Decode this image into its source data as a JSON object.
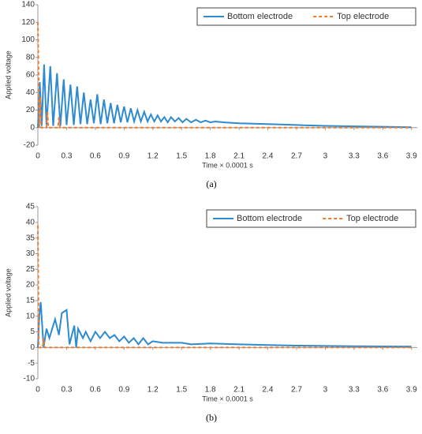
{
  "chart_data": [
    {
      "type": "line",
      "ylabel": "Applied voltage",
      "xlabel": "Time × 0.0001 s",
      "caption": "(a)",
      "xlim": [
        0,
        3.96
      ],
      "xticks": [
        0,
        0.3,
        0.6,
        0.9,
        1.2,
        1.5,
        1.8,
        2.1,
        2.4,
        2.7,
        3,
        3.3,
        3.6,
        3.9
      ],
      "ylim": [
        -20,
        140
      ],
      "yticks": [
        -20,
        0,
        20,
        40,
        60,
        80,
        100,
        120,
        140
      ],
      "grid": false,
      "legend": "upper right",
      "series": [
        {
          "name": "Bottom electrode",
          "color": "#2e8bcf",
          "dashed": false,
          "x": [
            0,
            0.02,
            0.04,
            0.065,
            0.09,
            0.13,
            0.16,
            0.2,
            0.235,
            0.27,
            0.3,
            0.34,
            0.375,
            0.41,
            0.445,
            0.48,
            0.515,
            0.55,
            0.585,
            0.62,
            0.655,
            0.69,
            0.725,
            0.76,
            0.795,
            0.83,
            0.865,
            0.9,
            0.935,
            0.97,
            1.005,
            1.04,
            1.075,
            1.11,
            1.145,
            1.18,
            1.215,
            1.25,
            1.285,
            1.32,
            1.355,
            1.39,
            1.43,
            1.47,
            1.51,
            1.55,
            1.6,
            1.65,
            1.7,
            1.75,
            1.8,
            1.85,
            1.95,
            2.1,
            2.4,
            2.7,
            3.0,
            3.3,
            3.6,
            3.9
          ],
          "values": [
            0,
            52,
            2,
            72,
            3,
            70,
            2,
            62,
            2,
            55,
            3,
            49,
            3,
            47,
            4,
            40,
            4,
            32,
            5,
            38,
            4,
            32,
            5,
            28,
            5,
            26,
            6,
            24,
            6,
            22,
            7,
            20,
            7,
            18,
            7,
            15,
            7,
            14,
            7,
            12,
            6,
            12,
            7,
            11,
            6,
            10,
            6,
            9,
            6,
            8,
            6,
            7,
            6,
            5,
            4,
            3,
            2,
            1.5,
            1,
            0.5
          ]
        },
        {
          "name": "Top electrode",
          "color": "#ed7d31",
          "dashed": true,
          "x": [
            0,
            0.015,
            0.025,
            0.035,
            0.09,
            0.1,
            0.11,
            0.21,
            0.22,
            0.23,
            3.9
          ],
          "values": [
            120,
            0,
            35,
            0,
            0,
            18,
            0,
            0,
            12,
            0,
            0
          ]
        }
      ]
    },
    {
      "type": "line",
      "ylabel": "Applied voltage",
      "xlabel": "Time × 0.0001 s",
      "caption": "(b)",
      "xlim": [
        0,
        3.96
      ],
      "xticks": [
        0,
        0.3,
        0.6,
        0.9,
        1.2,
        1.5,
        1.8,
        2.1,
        2.4,
        2.7,
        3,
        3.3,
        3.6,
        3.9
      ],
      "ylim": [
        -10,
        45
      ],
      "yticks": [
        -10,
        -5,
        0,
        5,
        10,
        15,
        20,
        25,
        30,
        35,
        40,
        45
      ],
      "grid": false,
      "legend": "upper right",
      "series": [
        {
          "name": "Bottom electrode",
          "color": "#2e8bcf",
          "dashed": false,
          "x": [
            0,
            0.015,
            0.03,
            0.06,
            0.09,
            0.12,
            0.18,
            0.22,
            0.25,
            0.3,
            0.33,
            0.38,
            0.4,
            0.42,
            0.47,
            0.5,
            0.55,
            0.6,
            0.65,
            0.7,
            0.75,
            0.8,
            0.85,
            0.9,
            0.95,
            1.0,
            1.05,
            1.1,
            1.15,
            1.2,
            1.3,
            1.5,
            1.6,
            1.8,
            2.1,
            2.4,
            2.7,
            3.0,
            3.3,
            3.9
          ],
          "values": [
            0,
            10,
            14.5,
            0,
            6,
            3,
            9,
            4,
            11,
            12,
            1,
            7,
            0,
            6,
            3,
            5,
            2,
            5,
            3,
            5,
            3,
            4,
            2,
            3.5,
            1.5,
            3,
            1,
            3,
            1,
            2,
            1.5,
            1.5,
            1,
            1.3,
            1,
            0.8,
            0.6,
            0.5,
            0.4,
            0.3
          ]
        },
        {
          "name": "Top electrode",
          "color": "#ed7d31",
          "dashed": true,
          "x": [
            0,
            0.01,
            0.05,
            0.06,
            0.07,
            0.42,
            3.9
          ],
          "values": [
            39,
            0,
            0,
            3,
            0,
            0,
            0
          ]
        }
      ]
    }
  ]
}
